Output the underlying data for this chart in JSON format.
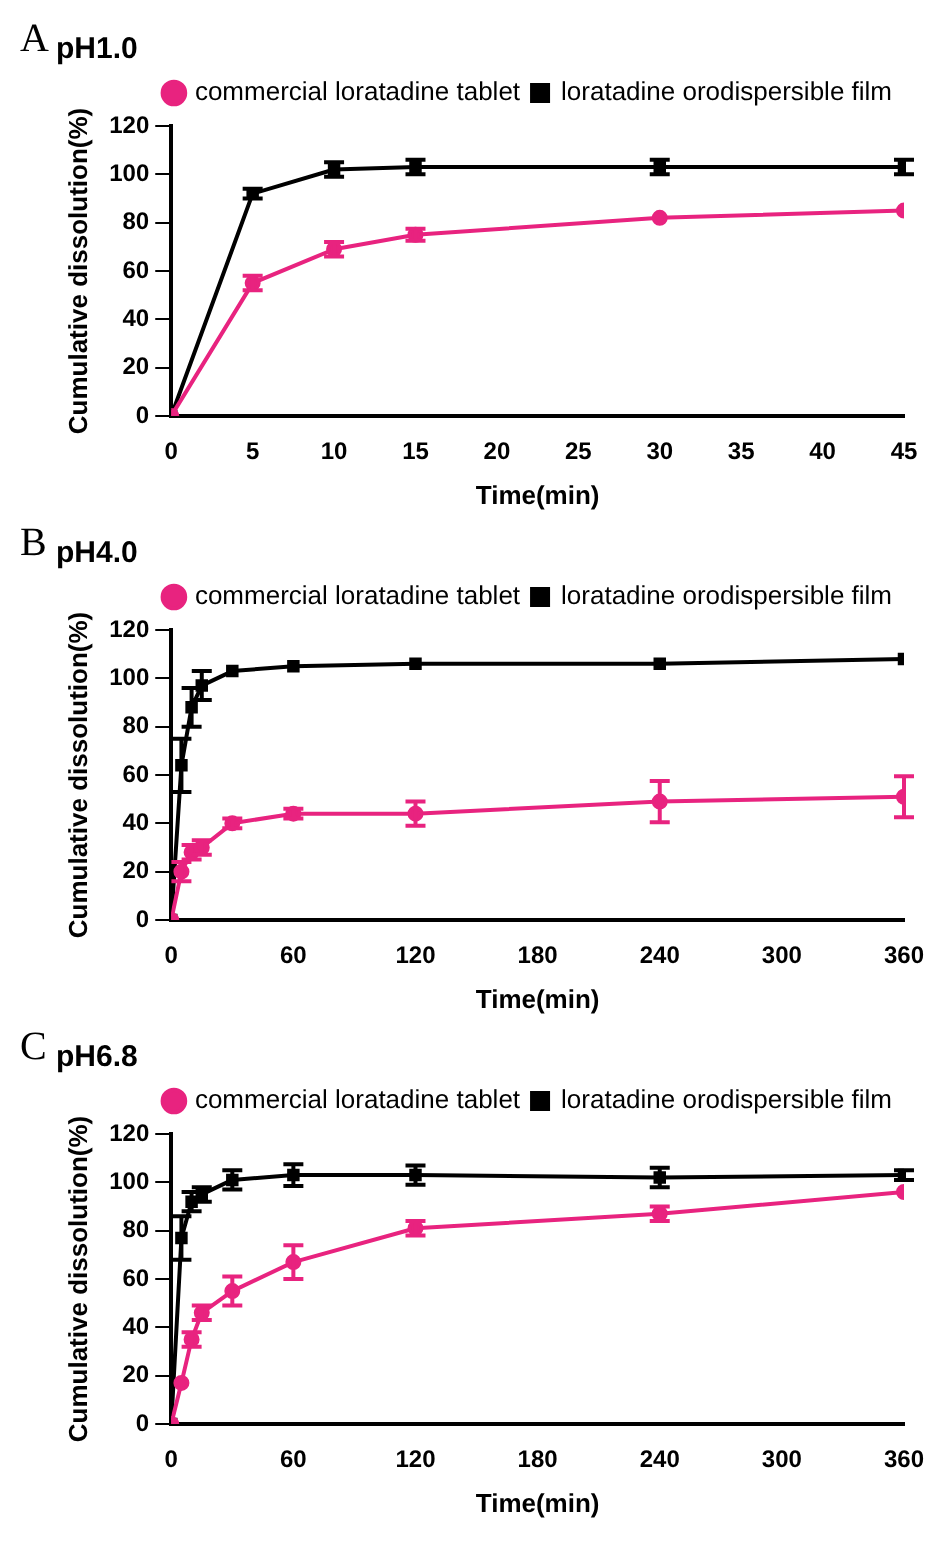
{
  "chart_data": [
    {
      "type": "line",
      "title": "pH1.0",
      "xlabel": "Time(min)",
      "ylabel": "Cumulative dissolution(%)",
      "annotations": [
        "A"
      ],
      "x": [
        0,
        5,
        10,
        15,
        30,
        45
      ],
      "xlim": [
        0,
        45
      ],
      "xticks": [
        0,
        5,
        10,
        15,
        20,
        25,
        30,
        35,
        40,
        45
      ],
      "ylim": [
        0,
        120
      ],
      "yticks": [
        0,
        20,
        40,
        60,
        80,
        100,
        120
      ],
      "grid": false,
      "legend": "top right",
      "series": [
        {
          "name": "commercial loratadine tablet",
          "color": "#e8237f",
          "marker": "circle",
          "values": [
            0,
            55,
            69,
            75,
            82,
            85
          ],
          "errors": [
            null,
            3,
            3,
            2.5,
            null,
            null
          ]
        },
        {
          "name": "loratadine orodispersible film",
          "color": "#000000",
          "marker": "square",
          "values": [
            0,
            92,
            102,
            103,
            103,
            103
          ],
          "errors": [
            null,
            2,
            3,
            3,
            3,
            3
          ]
        }
      ]
    },
    {
      "type": "line",
      "title": "pH4.0",
      "xlabel": "Time(min)",
      "ylabel": "Cumulative dissolution(%)",
      "annotations": [
        "B"
      ],
      "x": [
        0,
        5,
        10,
        15,
        30,
        60,
        120,
        240,
        360
      ],
      "xlim": [
        0,
        360
      ],
      "xticks": [
        0,
        60,
        120,
        180,
        240,
        300,
        360
      ],
      "ylim": [
        0,
        120
      ],
      "yticks": [
        0,
        20,
        40,
        60,
        80,
        100,
        120
      ],
      "grid": false,
      "legend": "top right",
      "series": [
        {
          "name": "commercial loratadine tablet",
          "color": "#e8237f",
          "marker": "circle",
          "values": [
            0,
            20,
            28,
            30,
            40,
            44,
            44,
            49,
            51
          ],
          "errors": [
            null,
            4,
            3,
            3,
            2,
            2,
            5,
            8.5,
            8.5
          ]
        },
        {
          "name": "loratadine orodispersible film",
          "color": "#000000",
          "marker": "square",
          "values": [
            0,
            64,
            88,
            97,
            103,
            105,
            106,
            106,
            108
          ],
          "errors": [
            null,
            11,
            8,
            6,
            null,
            null,
            null,
            null,
            null
          ]
        }
      ]
    },
    {
      "type": "line",
      "title": "pH6.8",
      "xlabel": "Time(min)",
      "ylabel": "Cumulative dissolution(%)",
      "annotations": [
        "C"
      ],
      "x": [
        0,
        5,
        10,
        15,
        30,
        60,
        120,
        240,
        360
      ],
      "xlim": [
        0,
        360
      ],
      "xticks": [
        0,
        60,
        120,
        180,
        240,
        300,
        360
      ],
      "ylim": [
        0,
        120
      ],
      "yticks": [
        0,
        20,
        40,
        60,
        80,
        100,
        120
      ],
      "grid": false,
      "legend": "top right",
      "series": [
        {
          "name": "commercial loratadine tablet",
          "color": "#e8237f",
          "marker": "circle",
          "values": [
            0,
            17,
            35,
            46,
            55,
            67,
            81,
            87,
            96
          ],
          "errors": [
            null,
            null,
            3,
            3,
            6,
            7,
            3,
            3,
            null
          ]
        },
        {
          "name": "loratadine orodispersible film",
          "color": "#000000",
          "marker": "square",
          "values": [
            0,
            77,
            92,
            95,
            101,
            103,
            103,
            102,
            103
          ],
          "errors": [
            null,
            9,
            4,
            3,
            4,
            4.5,
            4,
            4,
            2
          ]
        }
      ]
    }
  ]
}
